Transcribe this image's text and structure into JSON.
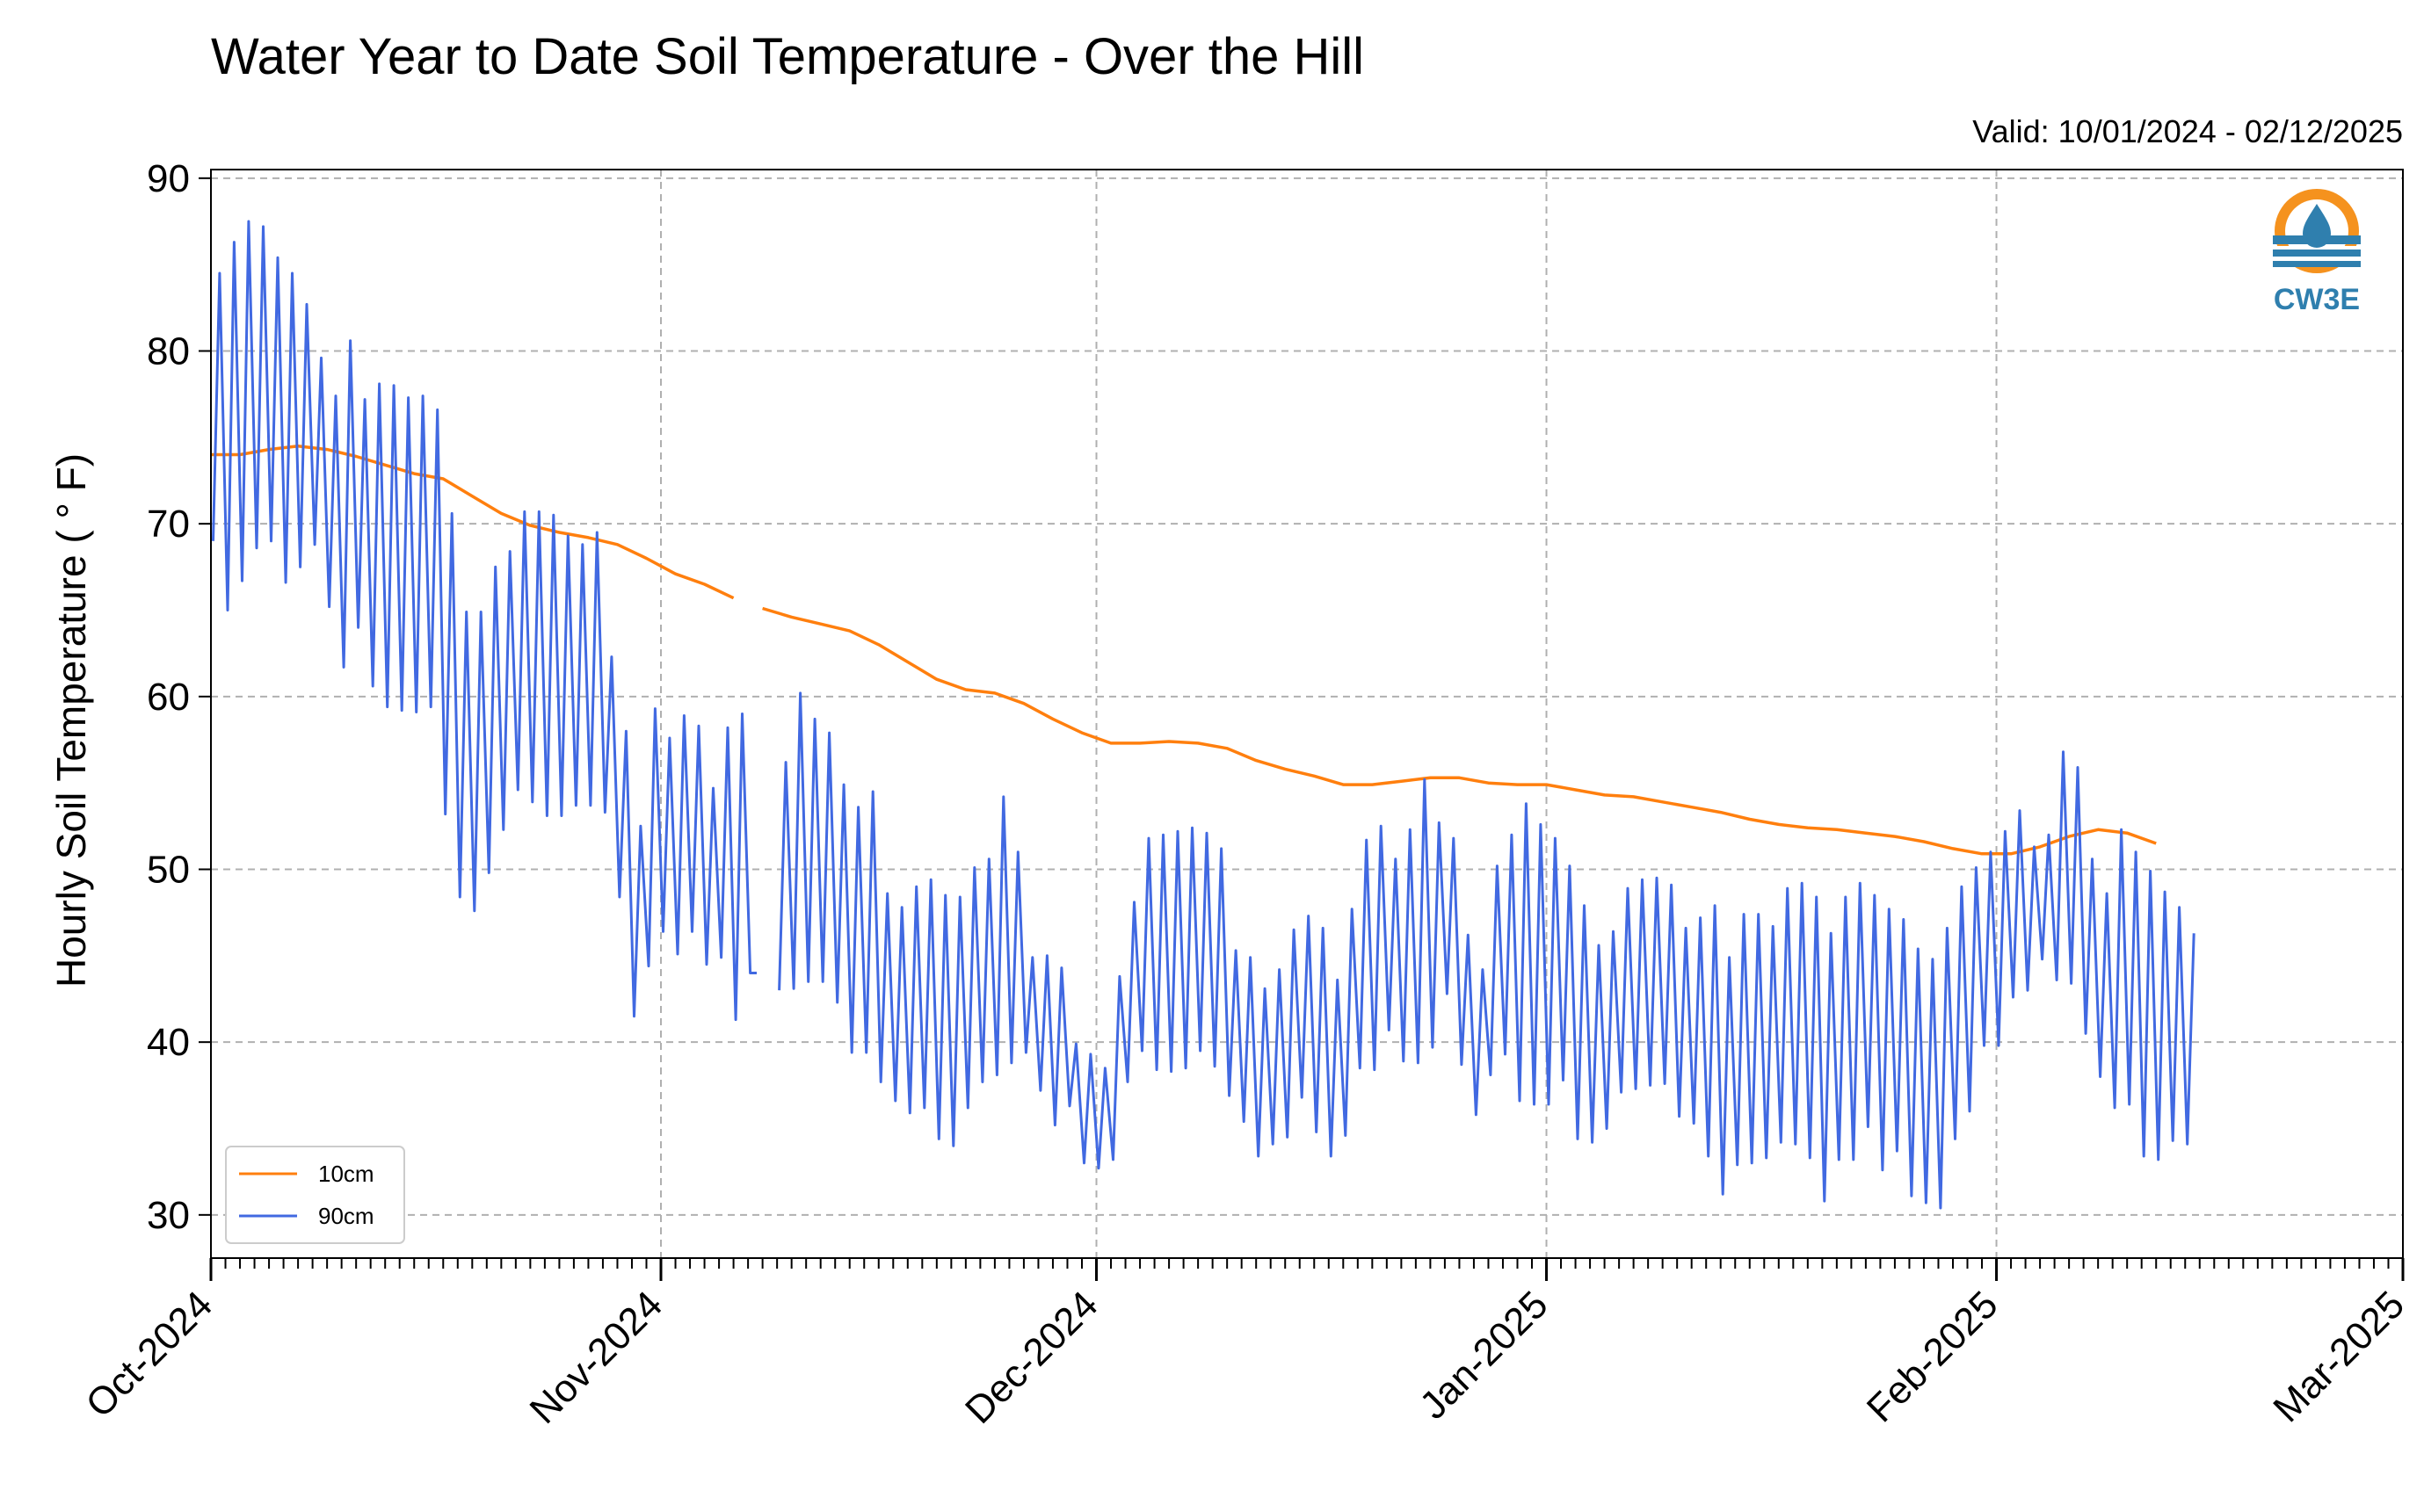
{
  "chart_data": {
    "type": "line",
    "title": "Water Year to Date Soil Temperature - Over the Hill",
    "subtitle": "Valid: 10/01/2024 - 02/12/2025",
    "ylabel": "Hourly Soil Temperature ( ° F)",
    "xlabel": "",
    "ylim": [
      27.5,
      90.5
    ],
    "yticks": [
      30,
      40,
      50,
      60,
      70,
      80,
      90
    ],
    "xlim": [
      "2024-10-01",
      "2025-03-01"
    ],
    "xticks": [
      {
        "date": "2024-10-01",
        "label": "Oct-2024"
      },
      {
        "date": "2024-11-01",
        "label": "Nov-2024"
      },
      {
        "date": "2024-12-01",
        "label": "Dec-2024"
      },
      {
        "date": "2025-01-01",
        "label": "Jan-2025"
      },
      {
        "date": "2025-02-01",
        "label": "Feb-2025"
      },
      {
        "date": "2025-03-01",
        "label": "Mar-2025"
      }
    ],
    "grid": true,
    "legend_position": "bottom-left",
    "series": [
      {
        "name": "10cm",
        "color": "#ff7f0e",
        "points": [
          [
            "2024-10-01",
            74.0
          ],
          [
            "2024-10-03",
            74.0
          ],
          [
            "2024-10-05",
            74.3
          ],
          [
            "2024-10-07",
            74.5
          ],
          [
            "2024-10-09",
            74.3
          ],
          [
            "2024-10-11",
            73.9
          ],
          [
            "2024-10-13",
            73.4
          ],
          [
            "2024-10-15",
            72.9
          ],
          [
            "2024-10-17",
            72.6
          ],
          [
            "2024-10-19",
            71.6
          ],
          [
            "2024-10-21",
            70.6
          ],
          [
            "2024-10-23",
            69.9
          ],
          [
            "2024-10-25",
            69.5
          ],
          [
            "2024-10-27",
            69.2
          ],
          [
            "2024-10-29",
            68.8
          ],
          [
            "2024-10-31",
            68.0
          ],
          [
            "2024-11-02",
            67.1
          ],
          [
            "2024-11-04",
            66.5
          ],
          [
            "2024-11-06",
            65.7
          ],
          [
            null,
            null
          ],
          [
            "2024-11-08",
            65.1
          ],
          [
            "2024-11-10",
            64.6
          ],
          [
            "2024-11-12",
            64.2
          ],
          [
            "2024-11-14",
            63.8
          ],
          [
            "2024-11-16",
            63.0
          ],
          [
            "2024-11-18",
            62.0
          ],
          [
            "2024-11-20",
            61.0
          ],
          [
            "2024-11-22",
            60.4
          ],
          [
            "2024-11-24",
            60.2
          ],
          [
            "2024-11-26",
            59.6
          ],
          [
            "2024-11-28",
            58.7
          ],
          [
            "2024-11-30",
            57.9
          ],
          [
            "2024-12-02",
            57.3
          ],
          [
            "2024-12-04",
            57.3
          ],
          [
            "2024-12-06",
            57.4
          ],
          [
            "2024-12-08",
            57.3
          ],
          [
            "2024-12-10",
            57.0
          ],
          [
            "2024-12-12",
            56.3
          ],
          [
            "2024-12-14",
            55.8
          ],
          [
            "2024-12-16",
            55.4
          ],
          [
            "2024-12-18",
            54.9
          ],
          [
            "2024-12-20",
            54.9
          ],
          [
            "2024-12-22",
            55.1
          ],
          [
            "2024-12-24",
            55.3
          ],
          [
            "2024-12-26",
            55.3
          ],
          [
            "2024-12-28",
            55.0
          ],
          [
            "2024-12-30",
            54.9
          ],
          [
            "2025-01-01",
            54.9
          ],
          [
            "2025-01-03",
            54.6
          ],
          [
            "2025-01-05",
            54.3
          ],
          [
            "2025-01-07",
            54.2
          ],
          [
            "2025-01-09",
            53.9
          ],
          [
            "2025-01-11",
            53.6
          ],
          [
            "2025-01-13",
            53.3
          ],
          [
            "2025-01-15",
            52.9
          ],
          [
            "2025-01-17",
            52.6
          ],
          [
            "2025-01-19",
            52.4
          ],
          [
            "2025-01-21",
            52.3
          ],
          [
            "2025-01-23",
            52.1
          ],
          [
            "2025-01-25",
            51.9
          ],
          [
            "2025-01-27",
            51.6
          ],
          [
            "2025-01-29",
            51.2
          ],
          [
            "2025-01-31",
            50.9
          ],
          [
            "2025-02-02",
            50.9
          ],
          [
            "2025-02-04",
            51.3
          ],
          [
            "2025-02-06",
            51.9
          ],
          [
            "2025-02-08",
            52.3
          ],
          [
            "2025-02-10",
            52.1
          ],
          [
            "2025-02-12",
            51.5
          ]
        ]
      },
      {
        "name": "90cm",
        "color": "#4169e1",
        "daily": [
          [
            69.0,
            84.5
          ],
          [
            65.0,
            86.3
          ],
          [
            66.7,
            87.5
          ],
          [
            68.6,
            87.2
          ],
          [
            69.0,
            85.4
          ],
          [
            66.6,
            84.5
          ],
          [
            67.5,
            82.7
          ],
          [
            68.8,
            79.6
          ],
          [
            65.2,
            77.4
          ],
          [
            61.7,
            80.6
          ],
          [
            64.0,
            77.2
          ],
          [
            60.6,
            78.1
          ],
          [
            59.4,
            78.0
          ],
          [
            59.2,
            77.3
          ],
          [
            59.1,
            77.4
          ],
          [
            59.4,
            76.6
          ],
          [
            53.2,
            70.6
          ],
          [
            48.4,
            64.9
          ],
          [
            47.6,
            64.9
          ],
          [
            49.8,
            67.5
          ],
          [
            52.3,
            68.4
          ],
          [
            54.6,
            70.7
          ],
          [
            53.9,
            70.7
          ],
          [
            53.1,
            70.5
          ],
          [
            53.1,
            69.3
          ],
          [
            53.7,
            68.8
          ],
          [
            53.7,
            69.5
          ],
          [
            53.3,
            62.3
          ],
          [
            48.4,
            58.0
          ],
          [
            41.5,
            52.5
          ],
          [
            44.4,
            59.3
          ],
          [
            46.4,
            57.6
          ],
          [
            45.1,
            58.9
          ],
          [
            46.4,
            58.3
          ],
          [
            44.5,
            54.7
          ],
          [
            44.9,
            58.2
          ],
          [
            41.3,
            59.0
          ],
          [
            44.0,
            44.0
          ],
          null,
          [
            43.0,
            56.2
          ],
          [
            43.1,
            60.2
          ],
          [
            43.5,
            58.7
          ],
          [
            43.5,
            57.9
          ],
          [
            42.3,
            54.9
          ],
          [
            39.4,
            53.6
          ],
          [
            39.4,
            54.5
          ],
          [
            37.7,
            48.6
          ],
          [
            36.6,
            47.8
          ],
          [
            35.9,
            49.0
          ],
          [
            36.2,
            49.4
          ],
          [
            34.4,
            48.5
          ],
          [
            34.0,
            48.4
          ],
          [
            36.2,
            50.1
          ],
          [
            37.7,
            50.6
          ],
          [
            38.1,
            54.2
          ],
          [
            38.8,
            51.0
          ],
          [
            39.4,
            44.9
          ],
          [
            37.2,
            45.0
          ],
          [
            35.2,
            44.3
          ],
          [
            36.3,
            39.9
          ],
          [
            33.0,
            39.3
          ],
          [
            32.7,
            38.5
          ],
          [
            33.2,
            43.8
          ],
          [
            37.7,
            48.1
          ],
          [
            39.5,
            51.8
          ],
          [
            38.4,
            52.0
          ],
          [
            38.3,
            52.2
          ],
          [
            38.5,
            52.4
          ],
          [
            39.5,
            52.1
          ],
          [
            38.6,
            51.2
          ],
          [
            36.9,
            45.3
          ],
          [
            35.4,
            44.9
          ],
          [
            33.4,
            43.1
          ],
          [
            34.1,
            44.2
          ],
          [
            34.5,
            46.5
          ],
          [
            36.8,
            47.3
          ],
          [
            34.8,
            46.6
          ],
          [
            33.4,
            43.6
          ],
          [
            34.6,
            47.7
          ],
          [
            38.5,
            51.7
          ],
          [
            38.4,
            52.5
          ],
          [
            40.7,
            50.6
          ],
          [
            38.9,
            52.3
          ],
          [
            38.8,
            55.2
          ],
          [
            39.7,
            52.7
          ],
          [
            42.8,
            51.8
          ],
          [
            38.7,
            46.2
          ],
          [
            35.8,
            44.2
          ],
          [
            38.1,
            50.2
          ],
          [
            39.3,
            52.0
          ],
          [
            36.6,
            53.8
          ],
          [
            36.4,
            52.6
          ],
          [
            36.4,
            51.8
          ],
          [
            37.8,
            50.2
          ],
          [
            34.4,
            47.9
          ],
          [
            34.2,
            45.6
          ],
          [
            35.0,
            46.4
          ],
          [
            37.1,
            48.9
          ],
          [
            37.3,
            49.4
          ],
          [
            37.5,
            49.5
          ],
          [
            37.6,
            49.1
          ],
          [
            35.7,
            46.6
          ],
          [
            35.3,
            47.2
          ],
          [
            33.4,
            47.9
          ],
          [
            31.2,
            44.9
          ],
          [
            32.9,
            47.4
          ],
          [
            33.0,
            47.4
          ],
          [
            33.3,
            46.7
          ],
          [
            34.2,
            48.9
          ],
          [
            34.1,
            49.2
          ],
          [
            33.3,
            48.4
          ],
          [
            30.8,
            46.3
          ],
          [
            33.2,
            48.4
          ],
          [
            33.2,
            49.2
          ],
          [
            35.1,
            48.5
          ],
          [
            32.6,
            47.7
          ],
          [
            33.7,
            47.1
          ],
          [
            31.1,
            45.4
          ],
          [
            30.7,
            44.8
          ],
          [
            30.4,
            46.6
          ],
          [
            34.4,
            49.0
          ],
          [
            36.0,
            50.1
          ],
          [
            39.8,
            51.0
          ],
          [
            39.8,
            52.2
          ],
          [
            42.6,
            53.4
          ],
          [
            43.0,
            51.3
          ],
          [
            44.8,
            52.0
          ],
          [
            43.6,
            56.8
          ],
          [
            43.4,
            55.9
          ],
          [
            40.5,
            50.6
          ],
          [
            38.0,
            48.6
          ],
          [
            36.2,
            52.3
          ],
          [
            36.4,
            51.0
          ],
          [
            33.4,
            49.9
          ],
          [
            33.2,
            48.7
          ],
          [
            34.3,
            47.8
          ],
          [
            34.1,
            46.3
          ]
        ]
      }
    ],
    "annotations": [
      "CW3E"
    ]
  }
}
